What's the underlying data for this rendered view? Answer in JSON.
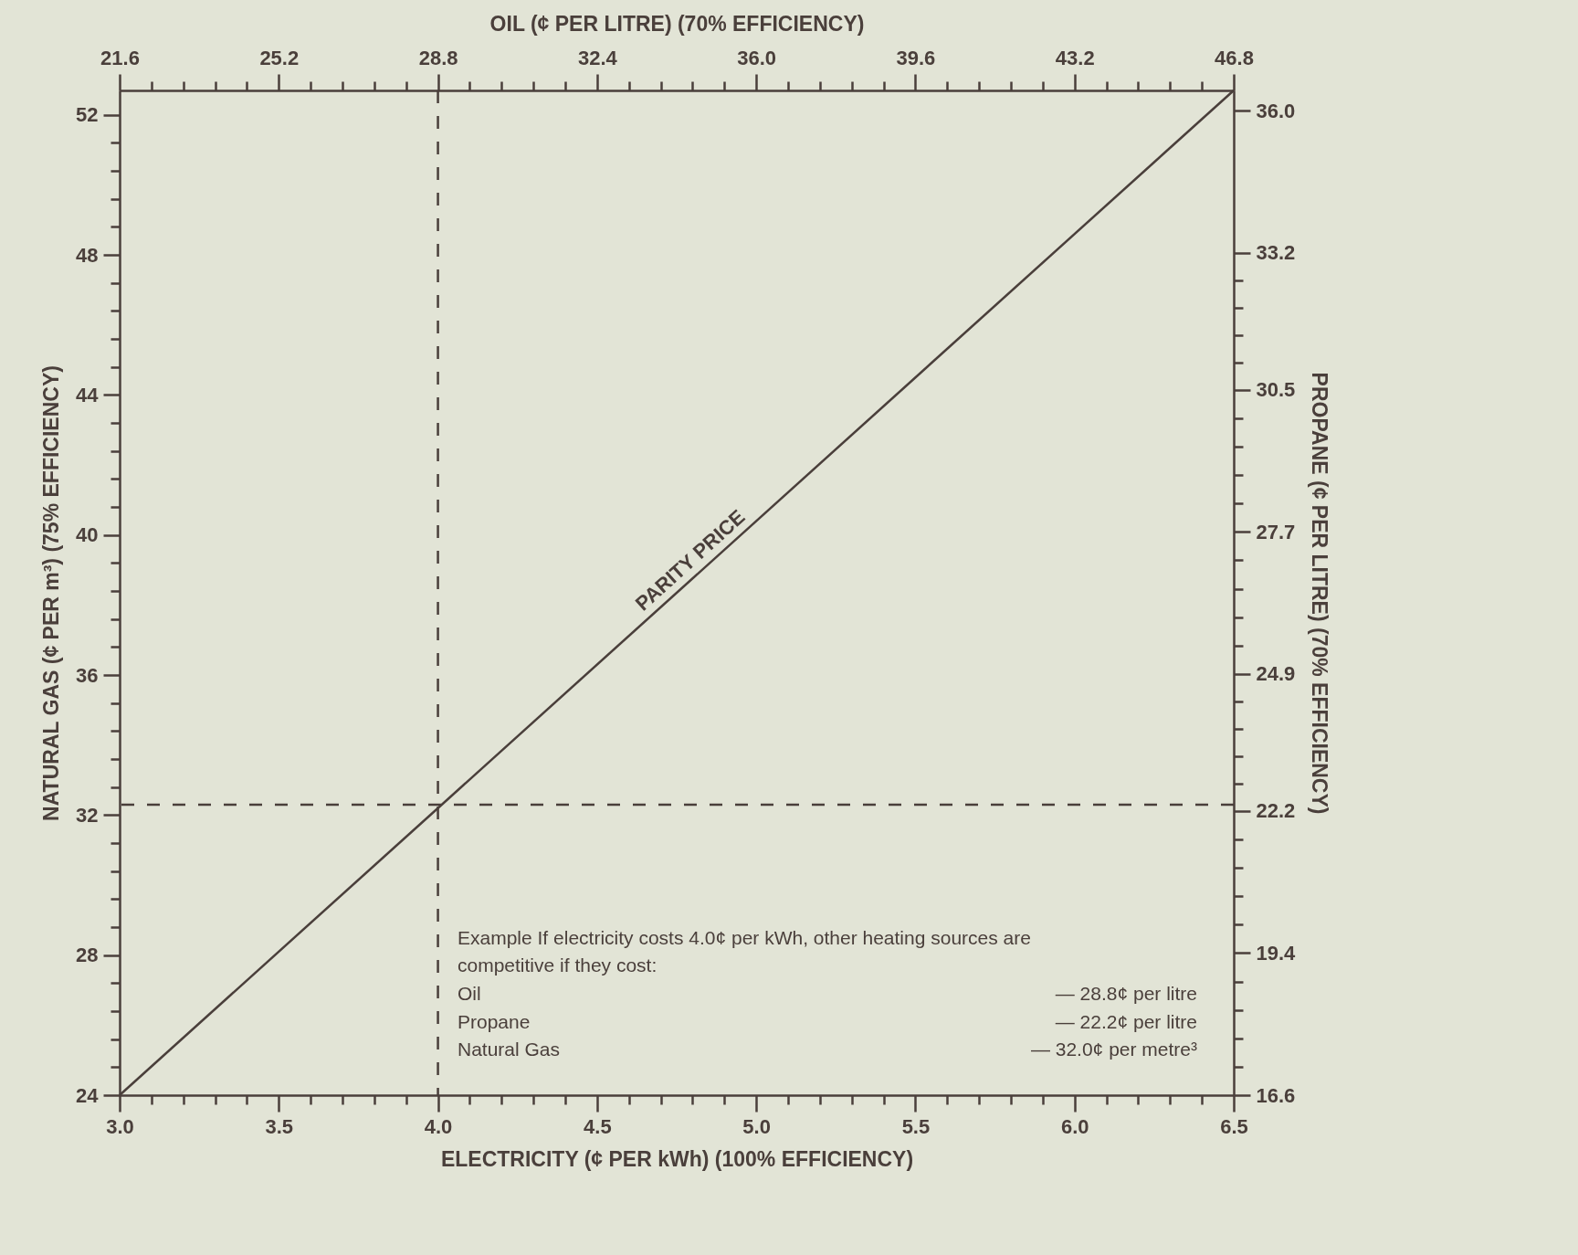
{
  "chart_data": {
    "type": "line",
    "xlabel": "ELECTRICITY (¢ PER kWh) (100% EFFICIENCY)",
    "ylabel": "NATURAL GAS (¢ PER m³) (75% EFFICIENCY)",
    "x2label": "OIL (¢ PER LITRE) (70% EFFICIENCY)",
    "y2label": "PROPANE (¢ PER LITRE) (70% EFFICIENCY)",
    "xlim": [
      3.0,
      6.5
    ],
    "xticks": [
      {
        "value": 3.0,
        "label": "3.0"
      },
      {
        "value": 3.1,
        "label": null
      },
      {
        "value": 3.2,
        "label": null
      },
      {
        "value": 3.3,
        "label": null
      },
      {
        "value": 3.4,
        "label": null
      },
      {
        "value": 3.5,
        "label": "3.5"
      },
      {
        "value": 3.6,
        "label": null
      },
      {
        "value": 3.7,
        "label": null
      },
      {
        "value": 3.8,
        "label": null
      },
      {
        "value": 3.9,
        "label": null
      },
      {
        "value": 4.0,
        "label": "4.0"
      },
      {
        "value": 4.1,
        "label": null
      },
      {
        "value": 4.2,
        "label": null
      },
      {
        "value": 4.3,
        "label": null
      },
      {
        "value": 4.4,
        "label": null
      },
      {
        "value": 4.5,
        "label": "4.5"
      },
      {
        "value": 4.6,
        "label": null
      },
      {
        "value": 4.7,
        "label": null
      },
      {
        "value": 4.8,
        "label": null
      },
      {
        "value": 4.9,
        "label": null
      },
      {
        "value": 5.0,
        "label": "5.0"
      },
      {
        "value": 5.1,
        "label": null
      },
      {
        "value": 5.2,
        "label": null
      },
      {
        "value": 5.3,
        "label": null
      },
      {
        "value": 5.4,
        "label": null
      },
      {
        "value": 5.5,
        "label": "5.5"
      },
      {
        "value": 5.6,
        "label": null
      },
      {
        "value": 5.7,
        "label": null
      },
      {
        "value": 5.8,
        "label": null
      },
      {
        "value": 5.9,
        "label": null
      },
      {
        "value": 6.0,
        "label": "6.0"
      },
      {
        "value": 6.1,
        "label": null
      },
      {
        "value": 6.2,
        "label": null
      },
      {
        "value": 6.3,
        "label": null
      },
      {
        "value": 6.4,
        "label": null
      },
      {
        "value": 6.5,
        "label": "6.5"
      }
    ],
    "ylim": [
      24,
      52.7
    ],
    "yticks": [
      24,
      {
        "value": 24.8,
        "label": null
      },
      {
        "value": 25.6,
        "label": null
      },
      {
        "value": 26.4,
        "label": null
      },
      {
        "value": 27.2,
        "label": null
      },
      28,
      {
        "value": 28.8,
        "label": null
      },
      {
        "value": 29.6,
        "label": null
      },
      {
        "value": 30.4,
        "label": null
      },
      {
        "value": 31.2,
        "label": null
      },
      32,
      {
        "value": 32.8,
        "label": null
      },
      {
        "value": 33.6,
        "label": null
      },
      {
        "value": 34.4,
        "label": null
      },
      {
        "value": 35.2,
        "label": null
      },
      36,
      {
        "value": 36.8,
        "label": null
      },
      {
        "value": 37.6,
        "label": null
      },
      {
        "value": 38.4,
        "label": null
      },
      {
        "value": 39.2,
        "label": null
      },
      40,
      {
        "value": 40.8,
        "label": null
      },
      {
        "value": 41.6,
        "label": null
      },
      {
        "value": 42.4,
        "label": null
      },
      {
        "value": 43.2,
        "label": null
      },
      44,
      {
        "value": 44.8,
        "label": null
      },
      {
        "value": 45.6,
        "label": null
      },
      {
        "value": 46.4,
        "label": null
      },
      {
        "value": 47.2,
        "label": null
      },
      48,
      {
        "value": 48.8,
        "label": null
      },
      {
        "value": 49.6,
        "label": null
      },
      {
        "value": 50.4,
        "label": null
      },
      {
        "value": 51.2,
        "label": null
      },
      52
    ],
    "x2lim": [
      21.6,
      46.8
    ],
    "x2ticks": [
      21.6,
      {
        "value": 22.32,
        "label": null
      },
      {
        "value": 23.04,
        "label": null
      },
      {
        "value": 23.76,
        "label": null
      },
      {
        "value": 24.48,
        "label": null
      },
      25.2,
      {
        "value": 25.92,
        "label": null
      },
      {
        "value": 26.64,
        "label": null
      },
      {
        "value": 27.36,
        "label": null
      },
      {
        "value": 28.08,
        "label": null
      },
      28.8,
      {
        "value": 29.52,
        "label": null
      },
      {
        "value": 30.24,
        "label": null
      },
      {
        "value": 30.96,
        "label": null
      },
      {
        "value": 31.68,
        "label": null
      },
      32.4,
      {
        "value": 33.12,
        "label": null
      },
      {
        "value": 33.84,
        "label": null
      },
      {
        "value": 34.56,
        "label": null
      },
      {
        "value": 35.28,
        "label": null
      },
      {
        "value": 36.0,
        "label": "36.0"
      },
      {
        "value": 36.72,
        "label": null
      },
      {
        "value": 37.44,
        "label": null
      },
      {
        "value": 38.16,
        "label": null
      },
      {
        "value": 38.88,
        "label": null
      },
      39.6,
      {
        "value": 40.32,
        "label": null
      },
      {
        "value": 41.04,
        "label": null
      },
      {
        "value": 41.76,
        "label": null
      },
      {
        "value": 42.48,
        "label": null
      },
      43.2,
      {
        "value": 43.92,
        "label": null
      },
      {
        "value": 44.64,
        "label": null
      },
      {
        "value": 45.36,
        "label": null
      },
      {
        "value": 46.08,
        "label": null
      },
      46.8
    ],
    "y2lim": [
      16.6,
      36.4
    ],
    "y2ticks": [
      16.6,
      {
        "value": 17.16,
        "label": null
      },
      {
        "value": 17.72,
        "label": null
      },
      {
        "value": 18.28,
        "label": null
      },
      {
        "value": 18.84,
        "label": null
      },
      19.4,
      {
        "value": 19.96,
        "label": null
      },
      {
        "value": 20.52,
        "label": null
      },
      {
        "value": 21.08,
        "label": null
      },
      {
        "value": 21.64,
        "label": null
      },
      22.2,
      {
        "value": 22.74,
        "label": null
      },
      {
        "value": 23.28,
        "label": null
      },
      {
        "value": 23.82,
        "label": null
      },
      {
        "value": 24.36,
        "label": null
      },
      24.9,
      {
        "value": 25.46,
        "label": null
      },
      {
        "value": 26.02,
        "label": null
      },
      {
        "value": 26.58,
        "label": null
      },
      {
        "value": 27.14,
        "label": null
      },
      27.7,
      {
        "value": 28.26,
        "label": null
      },
      {
        "value": 28.82,
        "label": null
      },
      {
        "value": 29.38,
        "label": null
      },
      {
        "value": 29.94,
        "label": null
      },
      30.5,
      {
        "value": 31.04,
        "label": null
      },
      {
        "value": 31.58,
        "label": null
      },
      {
        "value": 32.12,
        "label": null
      },
      {
        "value": 32.66,
        "label": null
      },
      33.2,
      {
        "value": 36.0,
        "label": "36.0"
      }
    ],
    "series": [
      {
        "color": "#4a3f3b",
        "x": [
          3.0,
          4.0,
          6.5
        ],
        "values": [
          24,
          32.2,
          52.7
        ]
      }
    ],
    "ref_lines": [
      {
        "axis": "x",
        "value": 4.0,
        "color": "#4a3f3b",
        "line_style": "dashed"
      },
      {
        "axis": "y",
        "value": 32.3,
        "color": "#4a3f3b",
        "line_style": "dashed"
      }
    ],
    "annotations": [
      {
        "text": "PARITY PRICE",
        "x": 4.82,
        "y": 39.0
      },
      "Example If electricity costs 4.0¢ per kWh, other heating sources are\ncompetitive if they cost:",
      "Oil",
      "— 28.8¢ per litre",
      "Propane",
      "— 22.2¢ per litre",
      "Natural Gas",
      "— 32.0¢ per metre³"
    ]
  }
}
